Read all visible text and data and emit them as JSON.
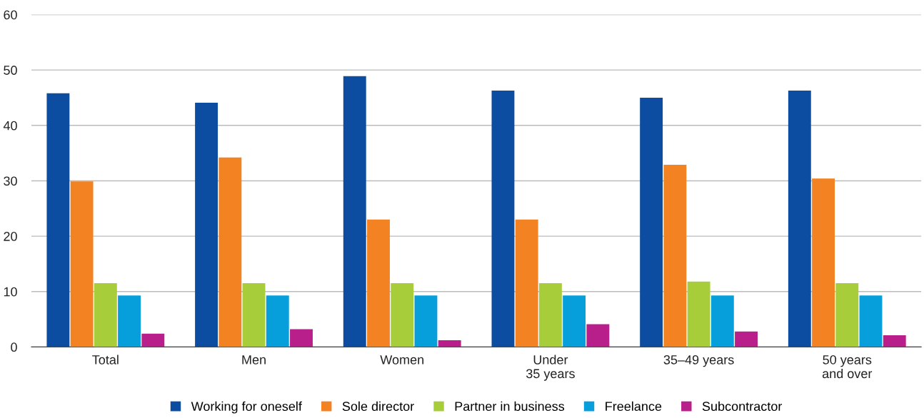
{
  "chart_data": {
    "type": "bar",
    "categories": [
      "Total",
      "Men",
      "Women",
      "Under\n35 years",
      "35–49 years",
      "50 years\nand over"
    ],
    "series": [
      {
        "name": "Working for oneself",
        "color": "#0d4da1",
        "values": [
          45.8,
          44.1,
          48.9,
          46.3,
          45.0,
          46.3
        ]
      },
      {
        "name": "Sole director",
        "color": "#f38222",
        "values": [
          29.9,
          34.2,
          23.0,
          23.0,
          32.9,
          30.4
        ]
      },
      {
        "name": "Partner in business",
        "color": "#a8cd3a",
        "values": [
          11.5,
          11.5,
          11.5,
          11.5,
          11.8,
          11.5
        ]
      },
      {
        "name": "Freelance",
        "color": "#079fdb",
        "values": [
          9.3,
          9.3,
          9.3,
          9.3,
          9.3,
          9.3
        ]
      },
      {
        "name": "Subcontractor",
        "color": "#b81f8b",
        "values": [
          2.4,
          3.2,
          1.2,
          4.1,
          2.8,
          2.1
        ]
      }
    ],
    "ylim": [
      0,
      60
    ],
    "yticks": [
      0,
      10,
      20,
      30,
      40,
      50,
      60
    ],
    "grid": "y",
    "legend": "bottom"
  }
}
